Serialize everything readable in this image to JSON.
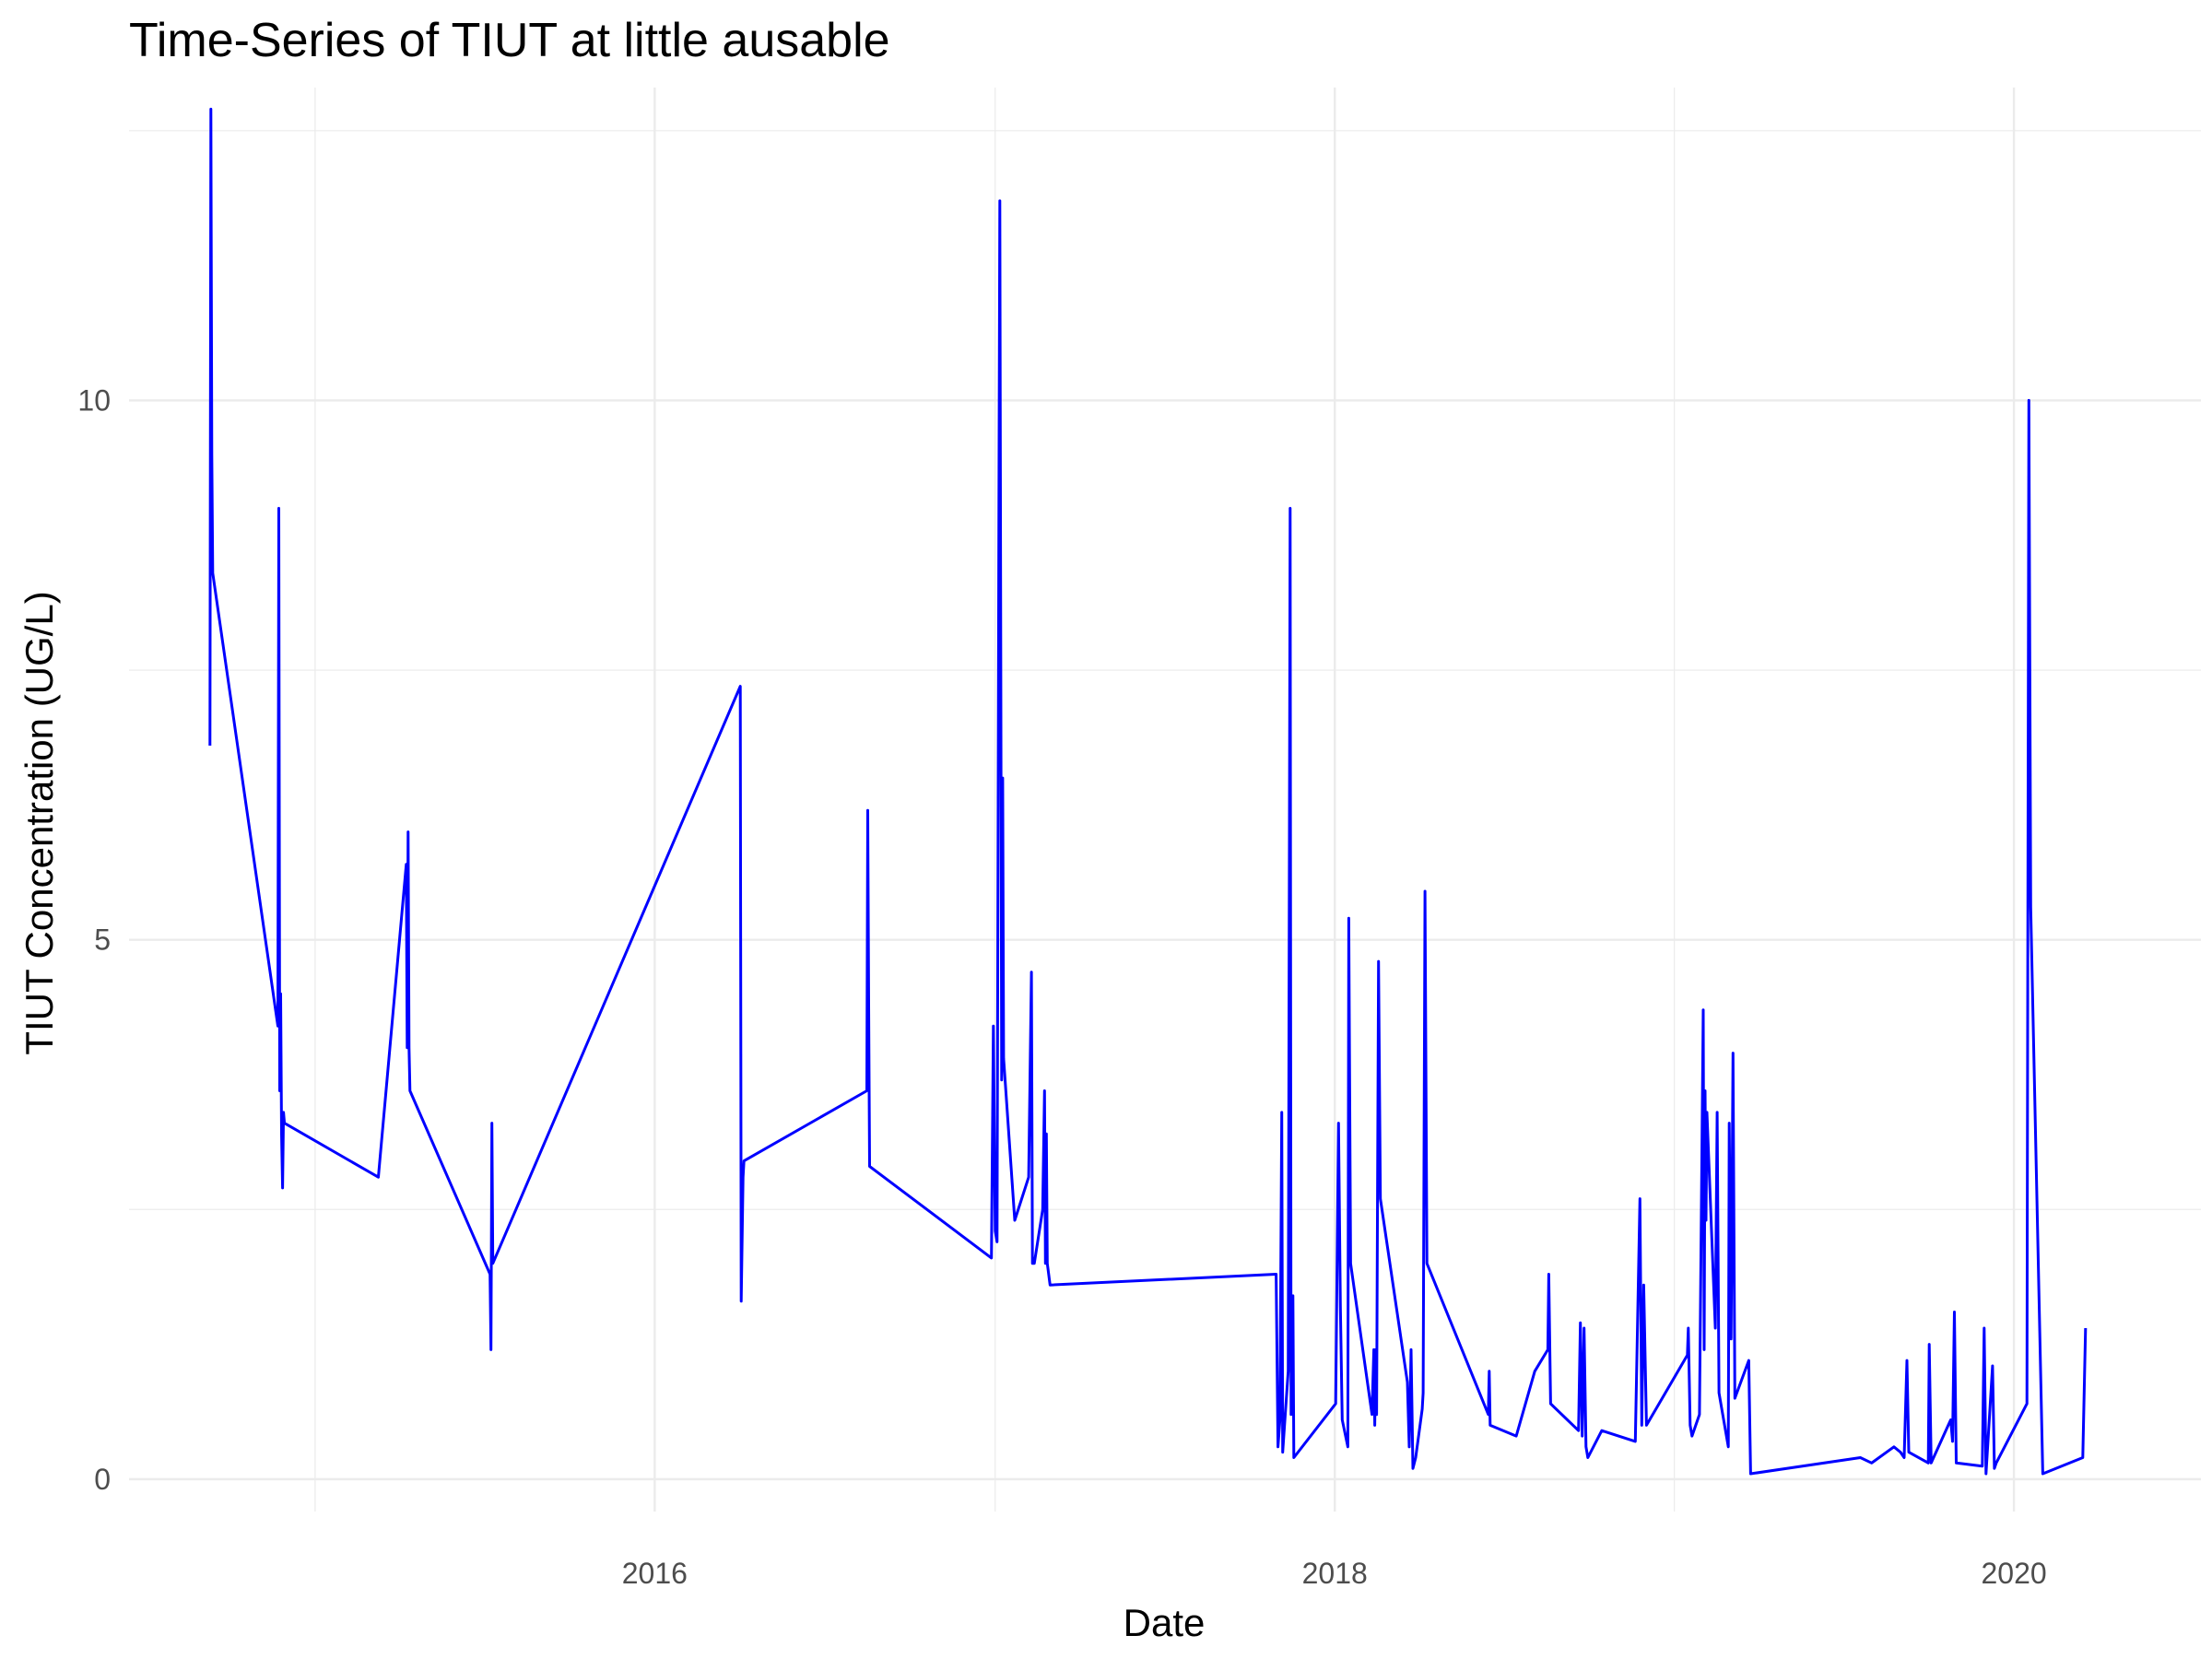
{
  "chart_data": {
    "type": "line",
    "title": "Time-Series of TIUT at little ausable",
    "xlabel": "Date",
    "ylabel": "TIUT Concentration (UG/L)",
    "x_ticks": [
      "2016",
      "2018",
      "2020"
    ],
    "y_ticks": [
      "0",
      "5",
      "10"
    ],
    "xlim": [
      "2014-06-15",
      "2020-07-20"
    ],
    "ylim": [
      -0.3,
      12.9
    ],
    "grid": true,
    "legend": "none",
    "series_color": "#0000ff",
    "series": [
      {
        "points": [
          [
            "2014-09-10",
            6.8
          ],
          [
            "2014-09-11",
            12.7
          ],
          [
            "2014-09-12",
            9.5
          ],
          [
            "2014-09-13",
            8.4
          ],
          [
            "2014-11-22",
            4.2
          ],
          [
            "2014-11-23",
            9.0
          ],
          [
            "2014-11-24",
            3.6
          ],
          [
            "2014-11-25",
            4.5
          ],
          [
            "2014-11-26",
            3.2
          ],
          [
            "2014-11-27",
            2.7
          ],
          [
            "2014-11-28",
            3.4
          ],
          [
            "2014-11-29",
            3.3
          ],
          [
            "2015-03-10",
            2.8
          ],
          [
            "2015-04-09",
            5.7
          ],
          [
            "2015-04-10",
            4.0
          ],
          [
            "2015-04-11",
            6.0
          ],
          [
            "2015-04-12",
            4.0
          ],
          [
            "2015-04-13",
            3.6
          ],
          [
            "2015-07-08",
            1.9
          ],
          [
            "2015-07-09",
            1.2
          ],
          [
            "2015-07-10",
            3.3
          ],
          [
            "2015-07-11",
            2.0
          ],
          [
            "2016-04-02",
            7.35
          ],
          [
            "2016-04-03",
            1.65
          ],
          [
            "2016-04-05",
            2.8
          ],
          [
            "2016-04-06",
            2.95
          ],
          [
            "2016-08-16",
            3.6
          ],
          [
            "2016-08-17",
            6.2
          ],
          [
            "2016-08-18",
            4.4
          ],
          [
            "2016-08-19",
            2.9
          ],
          [
            "2016-12-28",
            2.05
          ],
          [
            "2016-12-30",
            4.2
          ],
          [
            "2017-01-01",
            2.3
          ],
          [
            "2017-01-03",
            2.2
          ],
          [
            "2017-01-05",
            9.0
          ],
          [
            "2017-01-06",
            11.85
          ],
          [
            "2017-01-08",
            3.7
          ],
          [
            "2017-01-09",
            6.5
          ],
          [
            "2017-01-10",
            3.9
          ],
          [
            "2017-01-22",
            2.4
          ],
          [
            "2017-02-06",
            2.8
          ],
          [
            "2017-02-09",
            4.7
          ],
          [
            "2017-02-10",
            2.0
          ],
          [
            "2017-02-12",
            2.0
          ],
          [
            "2017-02-21",
            2.5
          ],
          [
            "2017-02-23",
            3.6
          ],
          [
            "2017-02-24",
            2.0
          ],
          [
            "2017-02-25",
            3.2
          ],
          [
            "2017-02-26",
            2.0
          ],
          [
            "2017-03-01",
            1.8
          ],
          [
            "2017-10-30",
            1.9
          ],
          [
            "2017-11-01",
            0.3
          ],
          [
            "2017-11-03",
            0.55
          ],
          [
            "2017-11-05",
            3.4
          ],
          [
            "2017-11-06",
            0.25
          ],
          [
            "2017-11-08",
            0.5
          ],
          [
            "2017-11-12",
            1.0
          ],
          [
            "2017-11-14",
            9.0
          ],
          [
            "2017-11-15",
            0.6
          ],
          [
            "2017-11-17",
            1.7
          ],
          [
            "2017-11-18",
            0.2
          ],
          [
            "2018-01-02",
            0.7
          ],
          [
            "2018-01-05",
            3.3
          ],
          [
            "2018-01-07",
            1.6
          ],
          [
            "2018-01-09",
            0.55
          ],
          [
            "2018-01-15",
            0.3
          ],
          [
            "2018-01-16",
            5.2
          ],
          [
            "2018-01-18",
            2.0
          ],
          [
            "2018-02-10",
            0.6
          ],
          [
            "2018-02-12",
            1.2
          ],
          [
            "2018-02-13",
            0.5
          ],
          [
            "2018-02-14",
            1.2
          ],
          [
            "2018-02-15",
            0.6
          ],
          [
            "2018-02-17",
            4.8
          ],
          [
            "2018-02-19",
            2.6
          ],
          [
            "2018-03-20",
            0.9
          ],
          [
            "2018-03-22",
            0.3
          ],
          [
            "2018-03-24",
            1.2
          ],
          [
            "2018-03-26",
            0.1
          ],
          [
            "2018-03-29",
            0.2
          ],
          [
            "2018-04-05",
            0.65
          ],
          [
            "2018-04-06",
            0.8
          ],
          [
            "2018-04-08",
            5.45
          ],
          [
            "2018-04-10",
            2.0
          ],
          [
            "2018-06-15",
            0.6
          ],
          [
            "2018-06-16",
            1.0
          ],
          [
            "2018-06-17",
            0.5
          ],
          [
            "2018-07-15",
            0.4
          ],
          [
            "2018-08-04",
            1.0
          ],
          [
            "2018-08-18",
            1.2
          ],
          [
            "2018-08-19",
            1.9
          ],
          [
            "2018-08-21",
            0.7
          ],
          [
            "2018-09-20",
            0.45
          ],
          [
            "2018-09-22",
            1.45
          ],
          [
            "2018-09-24",
            0.4
          ],
          [
            "2018-09-26",
            1.4
          ],
          [
            "2018-09-28",
            0.3
          ],
          [
            "2018-09-30",
            0.2
          ],
          [
            "2018-10-15",
            0.45
          ],
          [
            "2018-11-20",
            0.35
          ],
          [
            "2018-11-25",
            2.6
          ],
          [
            "2018-11-27",
            0.5
          ],
          [
            "2018-11-29",
            1.8
          ],
          [
            "2018-12-02",
            0.5
          ],
          [
            "2019-01-15",
            1.15
          ],
          [
            "2019-01-16",
            1.4
          ],
          [
            "2019-01-18",
            0.5
          ],
          [
            "2019-01-20",
            0.4
          ],
          [
            "2019-01-28",
            0.6
          ],
          [
            "2019-02-01",
            4.35
          ],
          [
            "2019-02-02",
            1.2
          ],
          [
            "2019-02-03",
            3.6
          ],
          [
            "2019-02-04",
            2.4
          ],
          [
            "2019-02-05",
            3.4
          ],
          [
            "2019-02-14",
            1.4
          ],
          [
            "2019-02-16",
            3.4
          ],
          [
            "2019-02-18",
            0.8
          ],
          [
            "2019-02-28",
            0.3
          ],
          [
            "2019-03-01",
            3.3
          ],
          [
            "2019-03-03",
            1.3
          ],
          [
            "2019-03-05",
            3.95
          ],
          [
            "2019-03-07",
            0.75
          ],
          [
            "2019-03-22",
            1.1
          ],
          [
            "2019-03-24",
            0.05
          ],
          [
            "2019-07-20",
            0.2
          ],
          [
            "2019-08-01",
            0.15
          ],
          [
            "2019-08-25",
            0.3
          ],
          [
            "2019-09-01",
            0.25
          ],
          [
            "2019-09-05",
            0.2
          ],
          [
            "2019-09-08",
            1.1
          ],
          [
            "2019-09-10",
            0.25
          ],
          [
            "2019-10-01",
            0.15
          ],
          [
            "2019-10-02",
            1.25
          ],
          [
            "2019-10-04",
            0.15
          ],
          [
            "2019-10-25",
            0.55
          ],
          [
            "2019-10-27",
            0.35
          ],
          [
            "2019-10-29",
            1.55
          ],
          [
            "2019-10-31",
            0.15
          ],
          [
            "2019-11-28",
            0.12
          ],
          [
            "2019-11-30",
            1.4
          ],
          [
            "2019-12-02",
            0.05
          ],
          [
            "2019-12-09",
            1.05
          ],
          [
            "2019-12-11",
            0.1
          ],
          [
            "2019-12-13",
            0.15
          ],
          [
            "2020-01-15",
            0.7
          ],
          [
            "2020-01-17",
            10.0
          ],
          [
            "2020-01-19",
            5.3
          ],
          [
            "2020-02-01",
            0.05
          ],
          [
            "2020-03-15",
            0.2
          ],
          [
            "2020-03-18",
            1.4
          ]
        ]
      }
    ]
  }
}
